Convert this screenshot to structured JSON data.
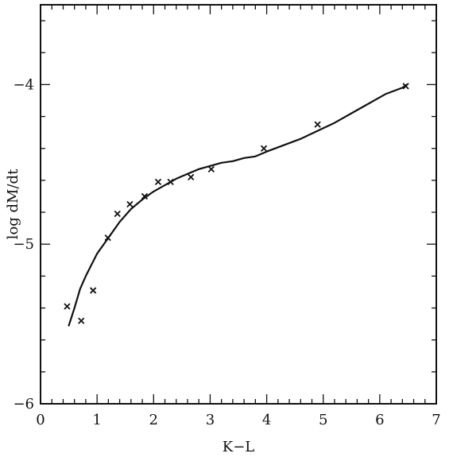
{
  "chart_data": {
    "type": "scatter",
    "title": "",
    "xlabel": "K−L",
    "ylabel": "log dM/dt",
    "xlim": [
      0,
      7
    ],
    "ylim": [
      -6,
      -3.5
    ],
    "x_ticks": [
      0,
      1,
      2,
      3,
      4,
      5,
      6,
      7
    ],
    "x_tick_labels": [
      "0",
      "1",
      "2",
      "3",
      "4",
      "5",
      "6",
      "7"
    ],
    "y_ticks": [
      -6,
      -5,
      -4
    ],
    "y_tick_labels": [
      "−6",
      "−5",
      "−4"
    ],
    "grid": false,
    "legend": "none",
    "series": [
      {
        "kind": "points",
        "marker": "x",
        "x": [
          0.47,
          0.72,
          0.93,
          1.19,
          1.36,
          1.58,
          1.84,
          2.08,
          2.3,
          2.66,
          3.02,
          3.95,
          4.9,
          6.46
        ],
        "y": [
          -5.39,
          -5.48,
          -5.29,
          -4.96,
          -4.81,
          -4.75,
          -4.7,
          -4.61,
          -4.61,
          -4.58,
          -4.53,
          -4.4,
          -4.25,
          -4.01
        ]
      },
      {
        "kind": "curve",
        "x": [
          0.5,
          0.6,
          0.7,
          0.8,
          0.9,
          1.0,
          1.2,
          1.4,
          1.6,
          1.8,
          2.0,
          2.2,
          2.4,
          2.6,
          2.8,
          3.0,
          3.2,
          3.4,
          3.6,
          3.8,
          4.0,
          4.3,
          4.6,
          4.9,
          5.2,
          5.5,
          5.8,
          6.1,
          6.4,
          6.48
        ],
        "y": [
          -5.51,
          -5.4,
          -5.28,
          -5.2,
          -5.13,
          -5.06,
          -4.96,
          -4.86,
          -4.78,
          -4.72,
          -4.67,
          -4.63,
          -4.59,
          -4.56,
          -4.53,
          -4.51,
          -4.49,
          -4.48,
          -4.46,
          -4.45,
          -4.42,
          -4.38,
          -4.34,
          -4.29,
          -4.24,
          -4.18,
          -4.12,
          -4.06,
          -4.02,
          -4.0
        ]
      }
    ]
  }
}
